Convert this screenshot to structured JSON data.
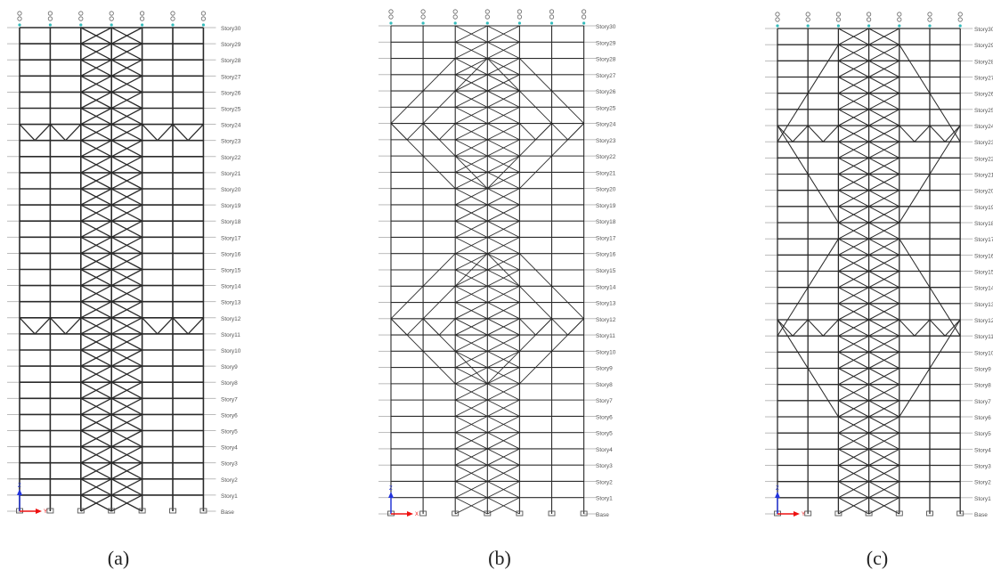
{
  "panels": [
    {
      "caption": "(a)",
      "axis_label_vertical": "Z",
      "axis_label_horizontal": "Y",
      "outrigger_stories": [
        "Story23",
        "Story11"
      ],
      "outrigger_style": "chevron"
    },
    {
      "caption": "(b)",
      "axis_label_vertical": "Z",
      "axis_label_horizontal": "X",
      "outrigger_stories": [
        "Story23",
        "Story11"
      ],
      "outrigger_style": "diamond"
    },
    {
      "caption": "(c)",
      "axis_label_vertical": "Z",
      "axis_label_horizontal": "Y",
      "outrigger_stories": [
        "Story23",
        "Story11"
      ],
      "outrigger_style": "chevron-fan"
    }
  ],
  "story_labels": [
    "Story30",
    "Story29",
    "Story28",
    "Story27",
    "Story26",
    "Story25",
    "Story24",
    "Story23",
    "Story22",
    "Story21",
    "Story20",
    "Story19",
    "Story18",
    "Story17",
    "Story16",
    "Story15",
    "Story14",
    "Story13",
    "Story12",
    "Story11",
    "Story10",
    "Story9",
    "Story8",
    "Story7",
    "Story6",
    "Story5",
    "Story4",
    "Story3",
    "Story2",
    "Story1",
    "Base"
  ],
  "colors": {
    "frame_line": "#2a2a2a",
    "label_text": "#555555",
    "axis_z": "#2233dd",
    "axis_horizontal": "#ee1111",
    "support": "#555555",
    "top_node": "#33bbbb"
  }
}
